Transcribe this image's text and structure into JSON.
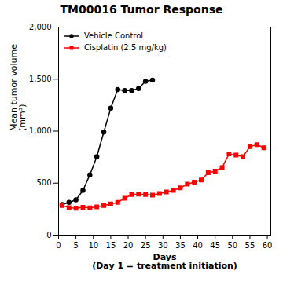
{
  "chart_data": {
    "type": "line",
    "title": "TM00016 Tumor  Response",
    "xlabel": "Days\n(Day 1 = treatment initiation)",
    "ylabel": "Mean tumor volume\n(mm³)",
    "xlim": [
      0,
      61
    ],
    "xticks": [
      0,
      5,
      10,
      15,
      20,
      25,
      30,
      35,
      40,
      45,
      50,
      55,
      60
    ],
    "ylim": [
      0,
      2000
    ],
    "yticks": [
      0,
      500,
      1000,
      1500,
      2000
    ],
    "grid": false,
    "legend": "upper left",
    "series": [
      {
        "name": "Vehicle Control",
        "color": "#000000",
        "marker": "circle",
        "x": [
          1,
          3,
          5,
          7,
          9,
          11,
          13,
          15,
          17,
          19,
          21,
          23,
          25,
          27
        ],
        "values": [
          295,
          315,
          340,
          430,
          580,
          755,
          990,
          1220,
          1400,
          1390,
          1390,
          1410,
          1480,
          1490
        ]
      },
      {
        "name": "Cisplatin (2.5 mg/kg)",
        "color": "#ff0000",
        "marker": "square",
        "x": [
          1,
          3,
          5,
          7,
          9,
          11,
          13,
          15,
          17,
          19,
          21,
          23,
          25,
          27,
          29,
          31,
          33,
          35,
          37,
          39,
          41,
          43,
          45,
          47,
          49,
          51,
          53,
          55,
          57,
          59
        ],
        "values": [
          285,
          265,
          258,
          268,
          262,
          272,
          285,
          300,
          315,
          355,
          390,
          395,
          390,
          385,
          400,
          415,
          430,
          455,
          490,
          510,
          530,
          600,
          615,
          650,
          780,
          770,
          755,
          850,
          870,
          840
        ]
      }
    ]
  }
}
